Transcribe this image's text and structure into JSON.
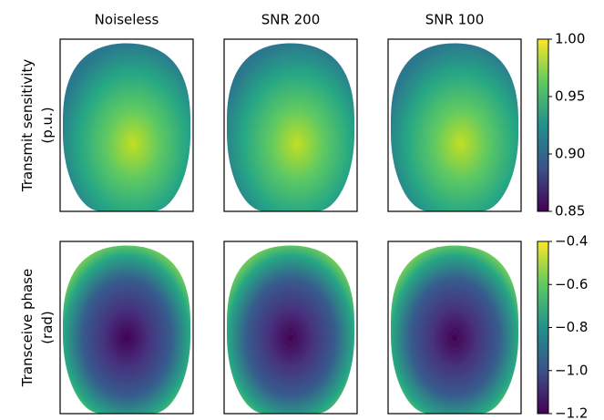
{
  "chart_data": {
    "type": "image-grid",
    "columns": [
      "Noiseless",
      "SNR 200",
      "SNR 100"
    ],
    "rows": [
      {
        "label": "Transmit sensitivity\n(p.u.)",
        "lines": [
          "Transmit sensitivity",
          "(p.u.)"
        ],
        "ylim": [
          0.85,
          1.0
        ],
        "yticks": [
          0.85,
          {
            "value": 0.9,
            "label": "0.90"
          },
          0.95,
          {
            "value": 1.0,
            "label": "1.00"
          }
        ]
      },
      {
        "label": "Transceive phase\n(rad)",
        "lines": [
          "Transceive phase",
          "(rad)"
        ],
        "ylim": [
          -1.2,
          -0.4
        ],
        "yticks": [
          {
            "value": -1.2,
            "label": "−1.2"
          },
          {
            "value": -1.0,
            "label": "−1.0"
          },
          {
            "value": -0.8,
            "label": "−0.8"
          },
          {
            "value": -0.6,
            "label": "−0.6"
          },
          {
            "value": -0.4,
            "label": "−0.4"
          }
        ]
      }
    ]
  }
}
